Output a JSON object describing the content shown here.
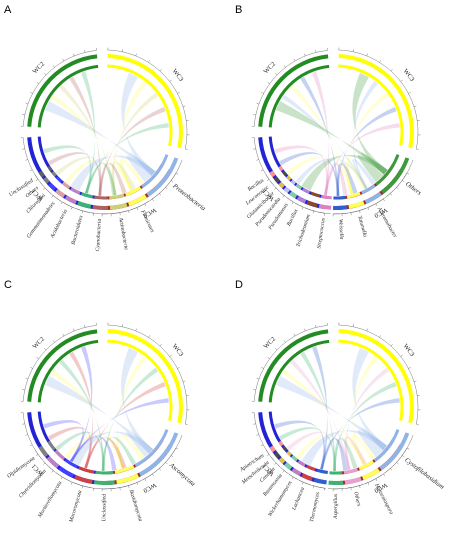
{
  "figure": {
    "panels": [
      {
        "letter": "A",
        "groups": [
          {
            "label": "WC3",
            "color": "#ffff00"
          },
          {
            "label": "WC2",
            "color": "#228b22"
          },
          {
            "label": "WC1",
            "color": "#2323d6"
          },
          {
            "label": "WC0",
            "color": "#a52a2a"
          }
        ],
        "taxa": [
          {
            "label": "Proteobacteria",
            "color": "#8fb4e8"
          },
          {
            "label": "Firmicutes",
            "color": "#ffff55"
          },
          {
            "label": "Actinobacteria",
            "color": "#cfcf77"
          },
          {
            "label": "Cyanobacteria",
            "color": "#b06060"
          },
          {
            "label": "Bacteroidetes",
            "color": "#3cb371"
          },
          {
            "label": "Acidobacteria",
            "color": "#c080c0"
          },
          {
            "label": "Gemmatimonadetes",
            "color": "#e0a0a0"
          },
          {
            "label": "Chloroflexi",
            "color": "#4040ff"
          },
          {
            "label": "Others",
            "color": "#808080"
          },
          {
            "label": "Unclassified",
            "color": "#606060"
          }
        ]
      },
      {
        "letter": "B",
        "groups": [
          {
            "label": "WC3",
            "color": "#ffff00"
          },
          {
            "label": "WC2",
            "color": "#228b22"
          },
          {
            "label": "WC1",
            "color": "#2323d6"
          },
          {
            "label": "WC0",
            "color": "#a52a2a"
          }
        ],
        "taxa": [
          {
            "label": "Others",
            "color": "#3c9a3c"
          },
          {
            "label": "Achromobacter",
            "color": "#8fb4e8"
          },
          {
            "label": "Tatumella",
            "color": "#ffff55"
          },
          {
            "label": "Weissella",
            "color": "#2f5fcf"
          },
          {
            "label": "Streptococcus",
            "color": "#e080c0"
          },
          {
            "label": "Trichodesmium",
            "color": "#8a4a2a"
          },
          {
            "label": "Bacillus",
            "color": "#b080d0"
          },
          {
            "label": "Pseudomonas",
            "color": "#7fd0a0"
          },
          {
            "label": "Pseudonocardia",
            "color": "#c0c0ff"
          },
          {
            "label": "Glutamicibacter",
            "color": "#e0c040"
          },
          {
            "label": "Leuconostoc",
            "color": "#4a4a4a"
          },
          {
            "label": "Bacillus",
            "color": "#ff9090"
          }
        ]
      },
      {
        "letter": "C",
        "groups": [
          {
            "label": "WC3",
            "color": "#ffff00"
          },
          {
            "label": "WC2",
            "color": "#228b22"
          },
          {
            "label": "WC1",
            "color": "#2323d6"
          },
          {
            "label": "WC0",
            "color": "#a52a2a"
          }
        ],
        "taxa": [
          {
            "label": "Ascomycota",
            "color": "#8fb4e8"
          },
          {
            "label": "Basidiomycota",
            "color": "#ffff55"
          },
          {
            "label": "Unclassified",
            "color": "#3cb371"
          },
          {
            "label": "Mucoromycota",
            "color": "#d04040"
          },
          {
            "label": "Mortierellomycota",
            "color": "#4040ff"
          },
          {
            "label": "Chytridiomycota",
            "color": "#c080c0"
          },
          {
            "label": "Olpidiomycota",
            "color": "#808080"
          }
        ]
      },
      {
        "letter": "D",
        "groups": [
          {
            "label": "WC3",
            "color": "#ffff00"
          },
          {
            "label": "WC2",
            "color": "#228b22"
          },
          {
            "label": "WC1",
            "color": "#2323d6"
          },
          {
            "label": "WC0",
            "color": "#a52a2a"
          }
        ],
        "taxa": [
          {
            "label": "Cystofilobasidium",
            "color": "#8fb4e8"
          },
          {
            "label": "Hanseniaspora",
            "color": "#ffff55"
          },
          {
            "label": "Others",
            "color": "#e8a0d0"
          },
          {
            "label": "Aspergillus",
            "color": "#3cb371"
          },
          {
            "label": "Thermomyces",
            "color": "#2f5fcf"
          },
          {
            "label": "Lachancea",
            "color": "#d04040"
          },
          {
            "label": "Wickerhamomyces",
            "color": "#c080c0"
          },
          {
            "label": "Rasamsonia",
            "color": "#7fd0a0"
          },
          {
            "label": "Candida",
            "color": "#e0c040"
          },
          {
            "label": "Metschnikowia",
            "color": "#4a4a4a"
          },
          {
            "label": "Apiotrichum",
            "color": "#ff9090"
          }
        ]
      }
    ]
  }
}
